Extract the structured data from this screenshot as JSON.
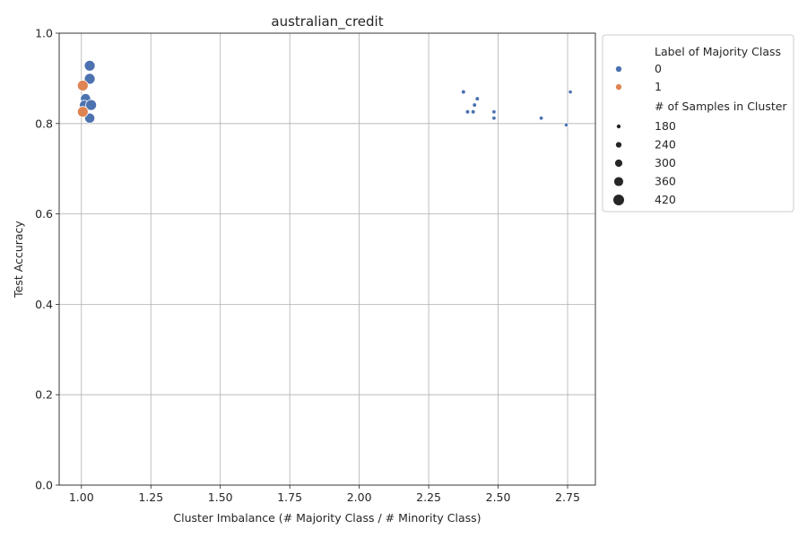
{
  "chart_data": {
    "type": "scatter",
    "title": "australian_credit",
    "xlabel": "Cluster Imbalance (# Majority Class / # Minority Class)",
    "ylabel": "Test Accuracy",
    "xlim": [
      0.92,
      2.85
    ],
    "ylim": [
      0.0,
      1.0
    ],
    "xticks": [
      "1.00",
      "1.25",
      "1.50",
      "1.75",
      "2.00",
      "2.25",
      "2.50",
      "2.75"
    ],
    "yticks": [
      "0.0",
      "0.2",
      "0.4",
      "0.6",
      "0.8",
      "1.0"
    ],
    "grid": true,
    "hue_legend": {
      "title": "Label of Majority Class",
      "entries": [
        {
          "label": "0",
          "color": "#4c72b0"
        },
        {
          "label": "1",
          "color": "#dd8452"
        }
      ]
    },
    "size_legend": {
      "title": "# of Samples in Cluster",
      "entries": [
        "180",
        "240",
        "300",
        "360",
        "420"
      ]
    },
    "legend_placement": "outside-right-top",
    "series": [
      {
        "label": "0",
        "color": "#4c72b0",
        "points": [
          {
            "x": 1.03,
            "y": 0.928,
            "size": 420
          },
          {
            "x": 1.03,
            "y": 0.899,
            "size": 420
          },
          {
            "x": 1.015,
            "y": 0.855,
            "size": 400
          },
          {
            "x": 1.01,
            "y": 0.841,
            "size": 380
          },
          {
            "x": 1.035,
            "y": 0.841,
            "size": 420
          },
          {
            "x": 1.03,
            "y": 0.812,
            "size": 400
          },
          {
            "x": 2.375,
            "y": 0.87,
            "size": 190
          },
          {
            "x": 2.425,
            "y": 0.855,
            "size": 190
          },
          {
            "x": 2.415,
            "y": 0.841,
            "size": 190
          },
          {
            "x": 2.39,
            "y": 0.826,
            "size": 190
          },
          {
            "x": 2.41,
            "y": 0.826,
            "size": 190
          },
          {
            "x": 2.485,
            "y": 0.826,
            "size": 185
          },
          {
            "x": 2.485,
            "y": 0.812,
            "size": 185
          },
          {
            "x": 2.655,
            "y": 0.812,
            "size": 185
          },
          {
            "x": 2.76,
            "y": 0.87,
            "size": 180
          },
          {
            "x": 2.745,
            "y": 0.797,
            "size": 180
          }
        ]
      },
      {
        "label": "1",
        "color": "#dd8452",
        "points": [
          {
            "x": 1.005,
            "y": 0.884,
            "size": 420
          },
          {
            "x": 1.005,
            "y": 0.826,
            "size": 420
          }
        ]
      }
    ]
  }
}
